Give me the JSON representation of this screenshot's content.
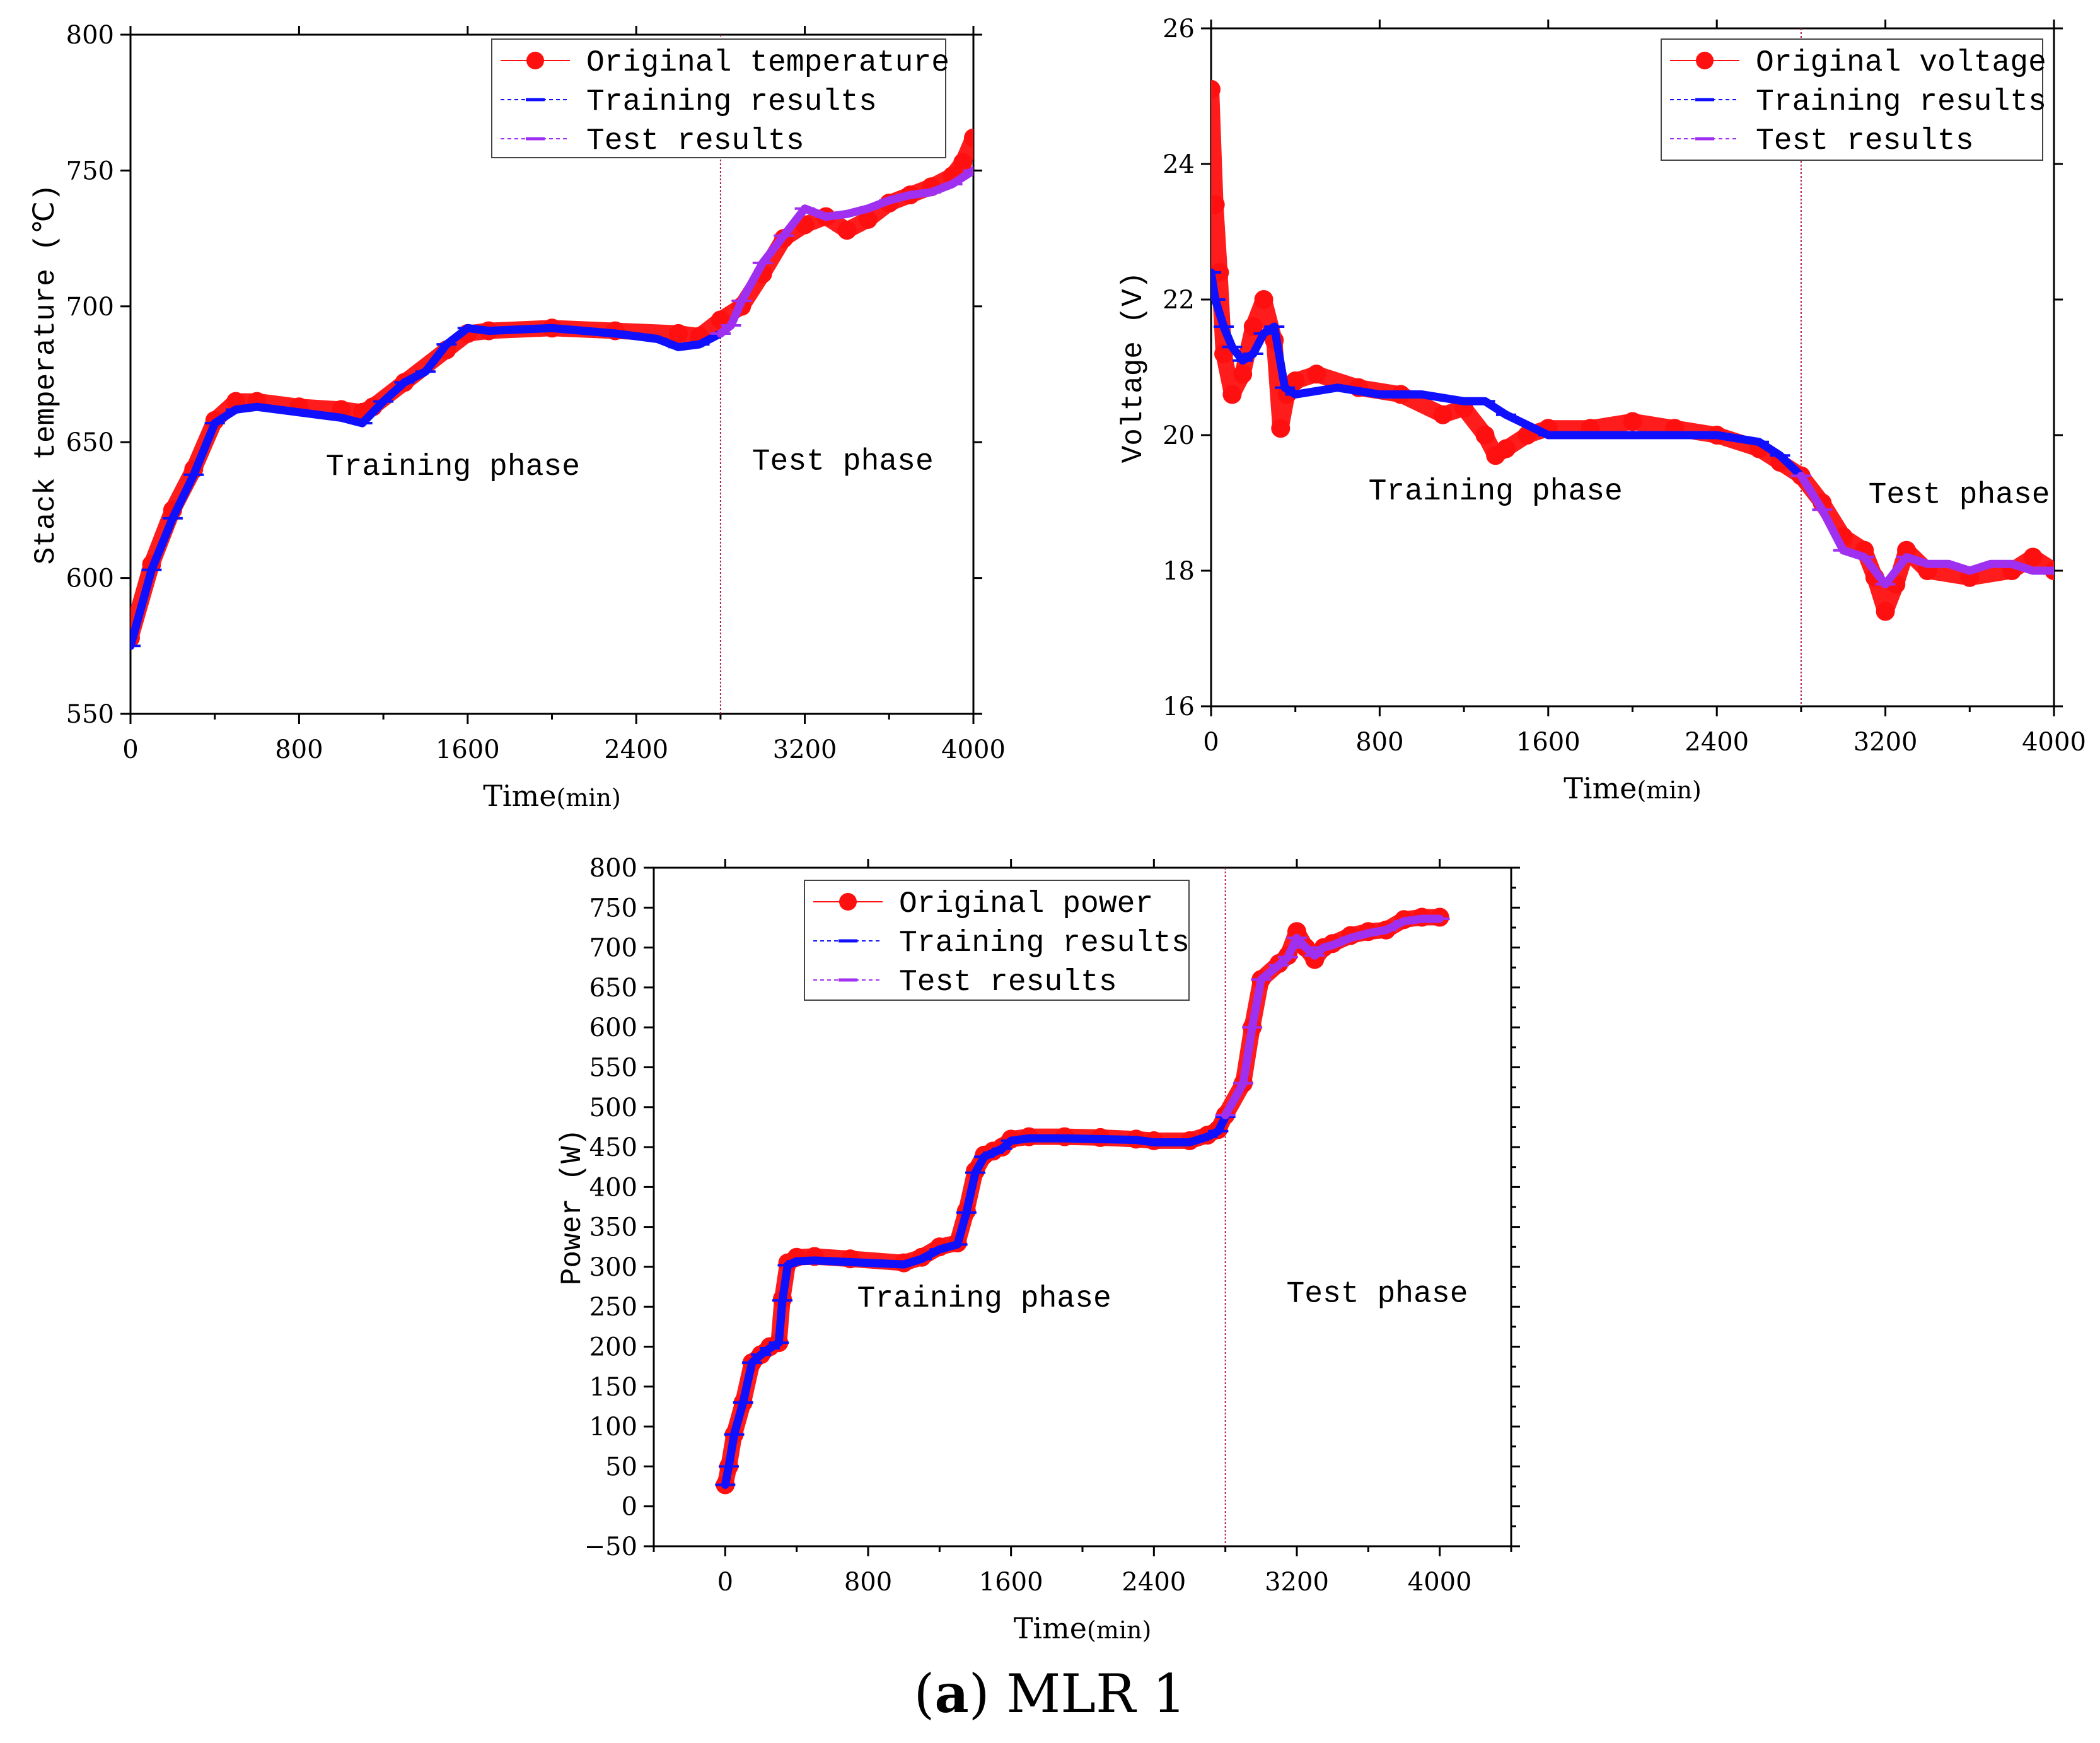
{
  "colors": {
    "original": "#ff1010",
    "training": "#1010ff",
    "test": "#a030f0",
    "divider": "#b02040",
    "axis": "#000000"
  },
  "caption": {
    "label": "a",
    "text": " MLR 1"
  },
  "chart_data": [
    {
      "type": "line",
      "id": "temperature",
      "xlabel": "Time",
      "xunit": "(min)",
      "ylabel": "Stack temperature (℃)",
      "xlim": [
        0,
        4000
      ],
      "ylim": [
        550,
        800
      ],
      "xticks": [
        0,
        800,
        1600,
        2400,
        3200,
        4000
      ],
      "yticks": [
        550,
        600,
        650,
        700,
        750,
        800
      ],
      "minor_y": false,
      "divider_x": 2800,
      "legend": [
        "Original temperature",
        "Training results",
        "Test results"
      ],
      "legend_position": "top-right",
      "phase_labels": [
        {
          "text": "Training phase",
          "x": 1530,
          "y": 638
        },
        {
          "text": "Test phase",
          "x": 3380,
          "y": 640
        }
      ],
      "series": [
        {
          "name": "Original temperature",
          "x": [
            0,
            100,
            200,
            300,
            400,
            500,
            600,
            800,
            1000,
            1100,
            1150,
            1300,
            1500,
            1600,
            1700,
            2000,
            2300,
            2600,
            2700,
            2800,
            2900,
            3000,
            3100,
            3200,
            3300,
            3400,
            3500,
            3600,
            3700,
            3800,
            3900,
            3950,
            4000
          ],
          "y": [
            578,
            605,
            625,
            640,
            658,
            665,
            665,
            663,
            662,
            661,
            663,
            672,
            684,
            690,
            691,
            692,
            691,
            690,
            689,
            695,
            700,
            712,
            725,
            730,
            733,
            728,
            732,
            738,
            741,
            744,
            748,
            753,
            762
          ]
        },
        {
          "name": "Training results",
          "x": [
            0,
            100,
            200,
            300,
            400,
            500,
            600,
            800,
            1000,
            1100,
            1200,
            1300,
            1400,
            1500,
            1600,
            1700,
            2000,
            2300,
            2500,
            2600,
            2700,
            2800
          ],
          "y": [
            575,
            603,
            622,
            638,
            657,
            662,
            663,
            661,
            659,
            657,
            665,
            672,
            676,
            686,
            692,
            691,
            692,
            690,
            688,
            685,
            686,
            690
          ]
        },
        {
          "name": "Test results",
          "x": [
            2800,
            2850,
            2900,
            3000,
            3100,
            3200,
            3300,
            3400,
            3500,
            3600,
            3700,
            3800,
            3900,
            4000
          ],
          "y": [
            690,
            693,
            702,
            716,
            726,
            736,
            733,
            734,
            736,
            739,
            741,
            742,
            745,
            750
          ]
        }
      ]
    },
    {
      "type": "line",
      "id": "voltage",
      "xlabel": "Time",
      "xunit": "(min)",
      "ylabel": "Voltage (V)",
      "xlim": [
        0,
        4000
      ],
      "ylim": [
        16,
        26
      ],
      "xticks": [
        0,
        800,
        1600,
        2400,
        3200,
        4000
      ],
      "yticks": [
        16,
        18,
        20,
        22,
        24,
        26
      ],
      "minor_y": false,
      "divider_x": 2800,
      "legend": [
        "Original voltage",
        "Training results",
        "Test results"
      ],
      "legend_position": "top-right",
      "phase_labels": [
        {
          "text": "Training phase",
          "x": 1350,
          "y": 19.05
        },
        {
          "text": "Test phase",
          "x": 3550,
          "y": 19.0
        }
      ],
      "series": [
        {
          "name": "Original voltage",
          "x": [
            0,
            20,
            40,
            60,
            100,
            150,
            200,
            250,
            300,
            330,
            360,
            400,
            500,
            700,
            900,
            1100,
            1200,
            1300,
            1350,
            1400,
            1500,
            1600,
            1800,
            2000,
            2200,
            2400,
            2600,
            2700,
            2800,
            2900,
            3000,
            3100,
            3150,
            3200,
            3250,
            3300,
            3400,
            3600,
            3800,
            3900,
            4000
          ],
          "y": [
            25.1,
            23.4,
            22.4,
            21.2,
            20.6,
            20.9,
            21.6,
            22.0,
            21.4,
            20.1,
            20.6,
            20.8,
            20.9,
            20.7,
            20.6,
            20.3,
            20.4,
            20.0,
            19.7,
            19.8,
            20.0,
            20.1,
            20.1,
            20.2,
            20.1,
            20.0,
            19.8,
            19.6,
            19.4,
            19.0,
            18.5,
            18.3,
            17.9,
            17.4,
            17.8,
            18.3,
            18.0,
            17.9,
            18.0,
            18.2,
            18.0
          ]
        },
        {
          "name": "Training results",
          "x": [
            0,
            20,
            60,
            100,
            150,
            200,
            250,
            300,
            350,
            400,
            600,
            800,
            1000,
            1200,
            1300,
            1400,
            1600,
            1800,
            2000,
            2200,
            2400,
            2600,
            2700,
            2800
          ],
          "y": [
            22.4,
            22.0,
            21.6,
            21.3,
            21.1,
            21.2,
            21.5,
            21.6,
            20.7,
            20.6,
            20.7,
            20.6,
            20.6,
            20.5,
            20.5,
            20.3,
            20.0,
            20.0,
            20.0,
            20.0,
            20.0,
            19.9,
            19.7,
            19.4
          ]
        },
        {
          "name": "Test results",
          "x": [
            2800,
            2900,
            3000,
            3100,
            3200,
            3300,
            3400,
            3500,
            3600,
            3700,
            3800,
            3900,
            4000
          ],
          "y": [
            19.4,
            18.9,
            18.3,
            18.2,
            17.8,
            18.2,
            18.1,
            18.1,
            18.0,
            18.1,
            18.1,
            18.0,
            18.0
          ]
        }
      ]
    },
    {
      "type": "line",
      "id": "power",
      "xlabel": "Time",
      "xunit": "(min)",
      "ylabel": "Power (W)",
      "xlim": [
        -400,
        4400
      ],
      "ylim": [
        -50,
        800
      ],
      "xticks": [
        0,
        800,
        1600,
        2400,
        3200,
        4000
      ],
      "yticks": [
        -50,
        0,
        50,
        100,
        150,
        200,
        250,
        300,
        350,
        400,
        450,
        500,
        550,
        600,
        650,
        700,
        750,
        800
      ],
      "minor_y": true,
      "divider_x": 2800,
      "legend": [
        "Original power",
        "Training results",
        "Test results"
      ],
      "legend_position": "top-left",
      "phase_labels": [
        {
          "text": "Training phase",
          "x": 1450,
          "y": 250
        },
        {
          "text": "Test phase",
          "x": 3650,
          "y": 256
        }
      ],
      "series": [
        {
          "name": "Original power",
          "x": [
            0,
            20,
            50,
            100,
            150,
            200,
            250,
            300,
            320,
            350,
            400,
            500,
            700,
            1000,
            1100,
            1200,
            1300,
            1350,
            1400,
            1450,
            1500,
            1550,
            1600,
            1700,
            1900,
            2100,
            2300,
            2400,
            2600,
            2700,
            2760,
            2800,
            2900,
            2950,
            3000,
            3100,
            3150,
            3200,
            3250,
            3300,
            3350,
            3400,
            3500,
            3600,
            3700,
            3800,
            3900,
            4000
          ],
          "y": [
            27,
            50,
            90,
            130,
            180,
            190,
            200,
            205,
            260,
            305,
            312,
            313,
            310,
            305,
            312,
            325,
            330,
            370,
            420,
            440,
            445,
            450,
            460,
            463,
            463,
            462,
            460,
            458,
            458,
            465,
            472,
            490,
            530,
            600,
            660,
            680,
            690,
            720,
            700,
            685,
            700,
            705,
            715,
            720,
            722,
            735,
            738,
            738
          ]
        },
        {
          "name": "Training results",
          "x": [
            0,
            20,
            50,
            100,
            150,
            200,
            250,
            300,
            320,
            350,
            400,
            500,
            700,
            1000,
            1100,
            1200,
            1300,
            1350,
            1400,
            1450,
            1500,
            1550,
            1600,
            1700,
            1900,
            2100,
            2300,
            2400,
            2600,
            2700,
            2760,
            2800
          ],
          "y": [
            27,
            50,
            90,
            130,
            180,
            190,
            198,
            205,
            258,
            302,
            307,
            308,
            306,
            303,
            310,
            322,
            328,
            368,
            418,
            438,
            443,
            448,
            458,
            461,
            461,
            460,
            459,
            456,
            456,
            463,
            470,
            488
          ]
        },
        {
          "name": "Test results",
          "x": [
            2800,
            2900,
            2950,
            3000,
            3100,
            3150,
            3200,
            3250,
            3300,
            3350,
            3400,
            3500,
            3600,
            3700,
            3800,
            3900,
            4000
          ],
          "y": [
            490,
            530,
            600,
            660,
            678,
            688,
            712,
            700,
            690,
            700,
            703,
            712,
            718,
            722,
            733,
            736,
            736
          ]
        }
      ]
    }
  ]
}
